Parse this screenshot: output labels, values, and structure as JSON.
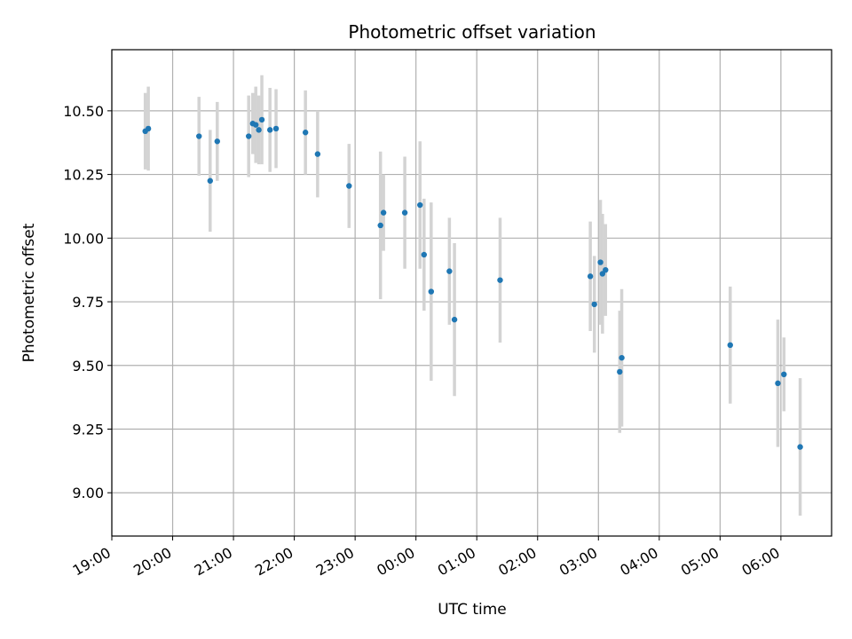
{
  "chart_data": {
    "type": "scatter",
    "title": "Photometric offset variation",
    "xlabel": "UTC time",
    "ylabel": "Photometric offset",
    "x_ticks": [
      "19:00",
      "20:00",
      "21:00",
      "22:00",
      "23:00",
      "00:00",
      "01:00",
      "02:00",
      "03:00",
      "04:00",
      "05:00",
      "06:00"
    ],
    "y_ticks": [
      "9.00",
      "9.25",
      "9.50",
      "9.75",
      "10.00",
      "10.25",
      "10.50"
    ],
    "xlim": [
      "19:00",
      "06:50"
    ],
    "ylim": [
      8.83,
      10.74
    ],
    "grid": true,
    "colors": {
      "point": "#1f77b4",
      "errorbar": "#d3d3d3",
      "grid": "#b0b0b0"
    },
    "points": [
      {
        "time": "19:33",
        "y": 10.42,
        "err": 0.15
      },
      {
        "time": "19:36",
        "y": 10.43,
        "err": 0.165
      },
      {
        "time": "20:26",
        "y": 10.4,
        "err": 0.155
      },
      {
        "time": "20:37",
        "y": 10.225,
        "err": 0.2
      },
      {
        "time": "20:44",
        "y": 10.38,
        "err": 0.155
      },
      {
        "time": "21:15",
        "y": 10.4,
        "err": 0.16
      },
      {
        "time": "21:19",
        "y": 10.45,
        "err": 0.12
      },
      {
        "time": "21:22",
        "y": 10.445,
        "err": 0.15
      },
      {
        "time": "21:25",
        "y": 10.425,
        "err": 0.135
      },
      {
        "time": "21:28",
        "y": 10.465,
        "err": 0.175
      },
      {
        "time": "21:36",
        "y": 10.425,
        "err": 0.165
      },
      {
        "time": "21:42",
        "y": 10.43,
        "err": 0.155
      },
      {
        "time": "22:11",
        "y": 10.415,
        "err": 0.165
      },
      {
        "time": "22:23",
        "y": 10.33,
        "err": 0.17
      },
      {
        "time": "22:54",
        "y": 10.205,
        "err": 0.165
      },
      {
        "time": "23:25",
        "y": 10.05,
        "err": 0.29
      },
      {
        "time": "23:28",
        "y": 10.1,
        "err": 0.15
      },
      {
        "time": "23:49",
        "y": 10.1,
        "err": 0.22
      },
      {
        "time": "00:04",
        "y": 10.13,
        "err": 0.25
      },
      {
        "time": "00:08",
        "y": 9.935,
        "err": 0.22
      },
      {
        "time": "00:15",
        "y": 9.79,
        "err": 0.35
      },
      {
        "time": "00:33",
        "y": 9.87,
        "err": 0.21
      },
      {
        "time": "00:38",
        "y": 9.68,
        "err": 0.3
      },
      {
        "time": "01:23",
        "y": 9.835,
        "err": 0.245
      },
      {
        "time": "02:52",
        "y": 9.85,
        "err": 0.215
      },
      {
        "time": "02:56",
        "y": 9.74,
        "err": 0.19
      },
      {
        "time": "03:02",
        "y": 9.905,
        "err": 0.245
      },
      {
        "time": "03:04",
        "y": 9.86,
        "err": 0.235
      },
      {
        "time": "03:07",
        "y": 9.875,
        "err": 0.18
      },
      {
        "time": "03:21",
        "y": 9.475,
        "err": 0.24
      },
      {
        "time": "03:23",
        "y": 9.53,
        "err": 0.27
      },
      {
        "time": "05:10",
        "y": 9.58,
        "err": 0.23
      },
      {
        "time": "05:57",
        "y": 9.43,
        "err": 0.25
      },
      {
        "time": "06:03",
        "y": 9.465,
        "err": 0.145
      },
      {
        "time": "06:19",
        "y": 9.18,
        "err": 0.27
      }
    ]
  }
}
